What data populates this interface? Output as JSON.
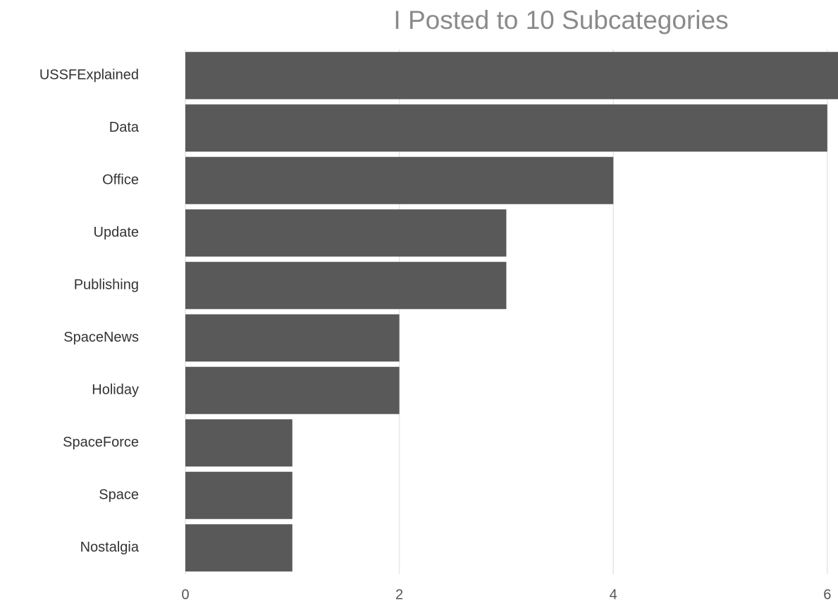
{
  "chart_data": {
    "type": "bar",
    "orientation": "horizontal",
    "title": "I Posted to 10 Subcategories",
    "categories": [
      "USSFExplained",
      "Data",
      "Office",
      "Update",
      "Publishing",
      "SpaceNews",
      "Holiday",
      "SpaceForce",
      "Space",
      "Nostalgia"
    ],
    "values": [
      6.1,
      6,
      4,
      3,
      3,
      2,
      2,
      1,
      1,
      1
    ],
    "color": "#595959",
    "xlim": [
      0,
      6.1
    ],
    "xticks": [
      0,
      2,
      4,
      6
    ],
    "grid": true
  }
}
